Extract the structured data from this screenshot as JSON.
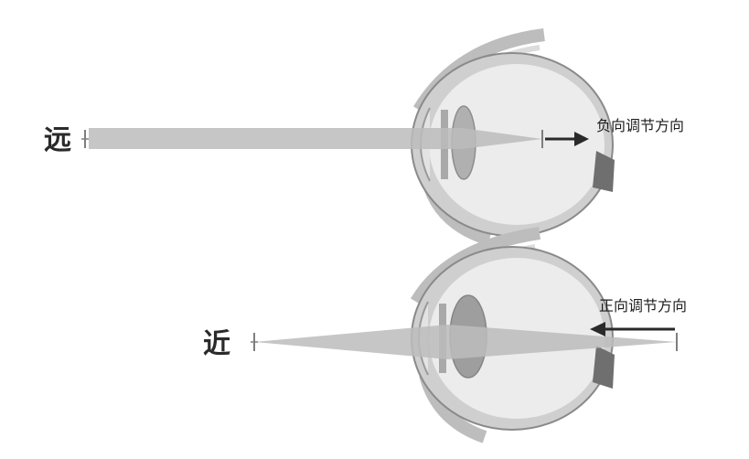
{
  "labels": {
    "far": "远",
    "near": "近",
    "negative_direction": "负向调节方向",
    "positive_direction": "正向调节方向"
  },
  "colors": {
    "sclera": "#c8c8c8",
    "sclera_outline": "#8a8a8a",
    "eye_inner": "#ececec",
    "lid": "#cfcfcf",
    "cornea": "#d9d9d9",
    "lens_far": "#b3b3b3",
    "lens_near": "#a0a0a0",
    "optic_nerve": "#7b7b7b",
    "beam": "#bcbcbc",
    "arrow": "#2a2a2a",
    "marker": "#7e7e7e"
  },
  "icons": [
    "eye-far-icon",
    "eye-near-icon",
    "arrow-right-icon",
    "arrow-left-icon",
    "focus-marker-icon"
  ]
}
